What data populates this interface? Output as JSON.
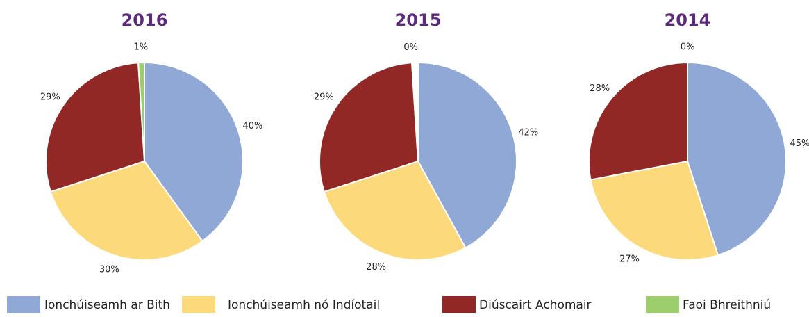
{
  "chart_data": [
    {
      "type": "pie",
      "title": "2016",
      "values": [
        40,
        30,
        29,
        1
      ],
      "value_labels": [
        "40%",
        "30%",
        "29%",
        "1%"
      ]
    },
    {
      "type": "pie",
      "title": "2015",
      "values": [
        42,
        28,
        29,
        0
      ],
      "value_labels": [
        "42%",
        "28%",
        "29%",
        "0%"
      ]
    },
    {
      "type": "pie",
      "title": "2014",
      "values": [
        45,
        27,
        28,
        0
      ],
      "value_labels": [
        "45%",
        "27%",
        "28%",
        "0%"
      ]
    }
  ],
  "legend": {
    "labels": [
      "Ionchúiseamh ar Bith",
      "Ionchúiseamh nó Indíotail",
      "Diúscairt Achomair",
      "Faoi Bhreithniú"
    ],
    "colors": [
      "#8fa8d6",
      "#fcd97a",
      "#922825",
      "#9ccf6c"
    ]
  }
}
